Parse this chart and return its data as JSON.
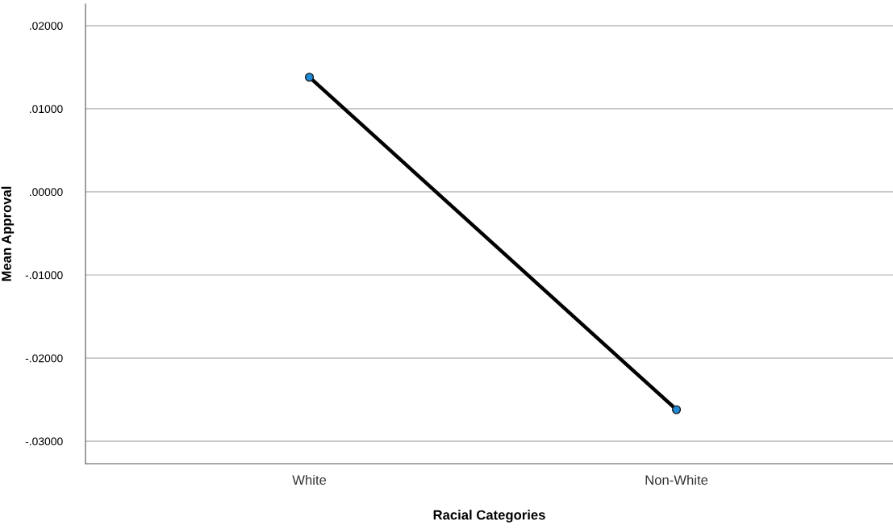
{
  "chart_data": {
    "type": "line",
    "xlabel": "Racial Categories",
    "ylabel": "Mean Approval",
    "categories": [
      "White",
      "Non-White"
    ],
    "series": [
      {
        "color": "#000000",
        "values": [
          0.0138,
          -0.0262
        ]
      }
    ],
    "ylim": [
      -0.0327,
      0.0226
    ],
    "yticks": [
      {
        "value": -0.03,
        "label": "-.03000"
      },
      {
        "value": -0.02,
        "label": "-.02000"
      },
      {
        "value": -0.01,
        "label": "-.01000"
      },
      {
        "value": 0,
        "label": ".00000"
      },
      {
        "value": 0.01,
        "label": ".01000"
      },
      {
        "value": 0.02,
        "label": ".02000"
      }
    ],
    "grid": "y",
    "marker": "circle",
    "line_style": "solid"
  }
}
